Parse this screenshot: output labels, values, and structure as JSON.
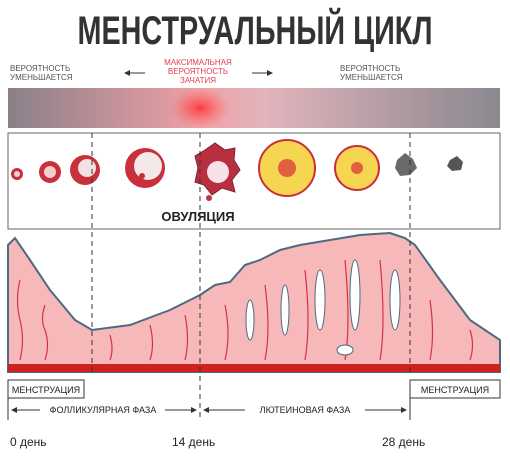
{
  "title": "МЕНСТРУАЛЬНЫЙ ЦИКЛ",
  "probability": {
    "left": [
      "ВЕРОЯТНОСТЬ",
      "УМЕНЬШАЕТСЯ"
    ],
    "center": [
      "МАКСИМАЛЬНАЯ",
      "ВЕРОЯТНОСТЬ",
      "ЗАЧАТИЯ"
    ],
    "right": [
      "ВЕРОЯТНОСТЬ",
      "УМЕНЬШАЕТСЯ"
    ]
  },
  "ovulation": "ОВУЛЯЦИЯ",
  "menstruation_left": "МЕНСТРУАЦИЯ",
  "menstruation_right": "МЕНСТРУАЦИЯ",
  "phases": {
    "follicular": "ФОЛЛИКУЛЯРНАЯ ФАЗА",
    "luteal": "ЛЮТЕИНОВАЯ ФАЗА"
  },
  "days": [
    "0 день",
    "14 день",
    "28 день"
  ]
}
